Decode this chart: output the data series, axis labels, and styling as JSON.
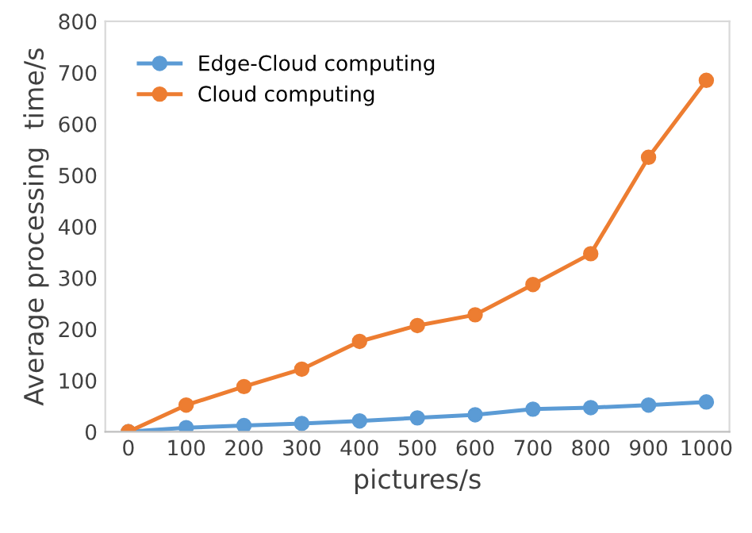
{
  "chart_data": {
    "type": "line",
    "xlabel": "pictures/s",
    "ylabel": "Average processing  time/s",
    "categories": [
      "0",
      "100",
      "200",
      "300",
      "400",
      "500",
      "600",
      "700",
      "800",
      "900",
      "1000"
    ],
    "series": [
      {
        "name": "Edge-Cloud computing",
        "color": "#5b9bd5",
        "values": [
          0,
          8,
          12,
          16,
          21,
          27,
          33,
          44,
          47,
          52,
          58
        ]
      },
      {
        "name": "Cloud computing",
        "color": "#ed7d31",
        "values": [
          0,
          52,
          88,
          122,
          176,
          207,
          228,
          287,
          347,
          535,
          685
        ]
      }
    ],
    "ylim": [
      0,
      800
    ],
    "yticks": [
      0,
      100,
      200,
      300,
      400,
      500,
      600,
      700,
      800
    ],
    "grid": false,
    "legend": "top left",
    "marker": "circle",
    "line_style": "solid"
  }
}
